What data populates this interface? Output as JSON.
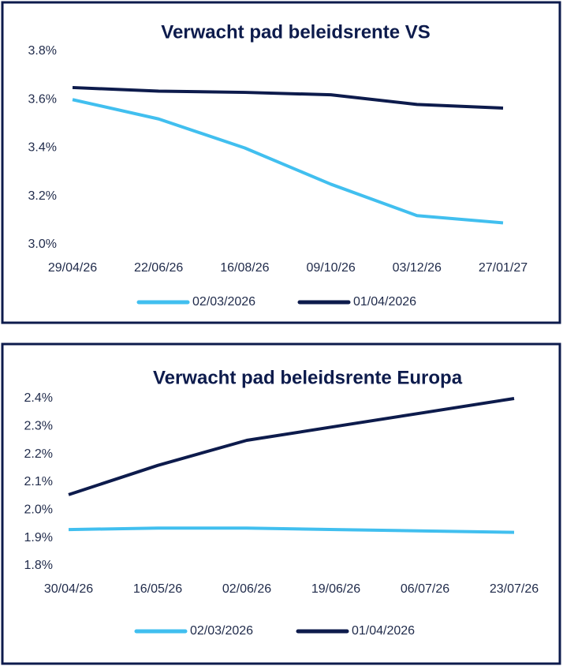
{
  "chart_data": [
    {
      "type": "line",
      "title": "Verwacht pad beleidsrente VS",
      "categories": [
        "29/04/26",
        "22/06/26",
        "16/08/26",
        "09/10/26",
        "03/12/26",
        "27/01/27"
      ],
      "series": [
        {
          "name": "02/03/2026",
          "color": "#41bfef",
          "values": [
            3.6,
            3.52,
            3.4,
            3.25,
            3.12,
            3.09
          ]
        },
        {
          "name": "01/04/2026",
          "color": "#0d1b4c",
          "values": [
            3.65,
            3.635,
            3.63,
            3.62,
            3.58,
            3.565
          ]
        }
      ],
      "ylim": [
        3.0,
        3.8
      ],
      "yticks": [
        {
          "value": 3.0,
          "label": "3.0%"
        },
        {
          "value": 3.2,
          "label": "3.2%"
        },
        {
          "value": 3.4,
          "label": "3.4%"
        },
        {
          "value": 3.6,
          "label": "3.6%"
        },
        {
          "value": 3.8,
          "label": "3.8%"
        }
      ],
      "legend": "bottom"
    },
    {
      "type": "line",
      "title": "Verwacht pad beleidsrente Europa",
      "categories": [
        "30/04/26",
        "16/05/26",
        "02/06/26",
        "19/06/26",
        "06/07/26",
        "23/07/26"
      ],
      "series": [
        {
          "name": "02/03/2026",
          "color": "#41bfef",
          "values": [
            1.93,
            1.935,
            1.935,
            1.93,
            1.925,
            1.92
          ]
        },
        {
          "name": "01/04/2026",
          "color": "#0d1b4c",
          "values": [
            2.055,
            2.16,
            2.25,
            2.3,
            2.35,
            2.4
          ]
        }
      ],
      "ylim": [
        1.8,
        2.4
      ],
      "yticks": [
        {
          "value": 1.8,
          "label": "1.8%"
        },
        {
          "value": 1.9,
          "label": "1.9%"
        },
        {
          "value": 2.0,
          "label": "2.0%"
        },
        {
          "value": 2.1,
          "label": "2.1%"
        },
        {
          "value": 2.2,
          "label": "2.2%"
        },
        {
          "value": 2.3,
          "label": "2.3%"
        },
        {
          "value": 2.4,
          "label": "2.4%"
        }
      ],
      "legend": "bottom"
    }
  ]
}
